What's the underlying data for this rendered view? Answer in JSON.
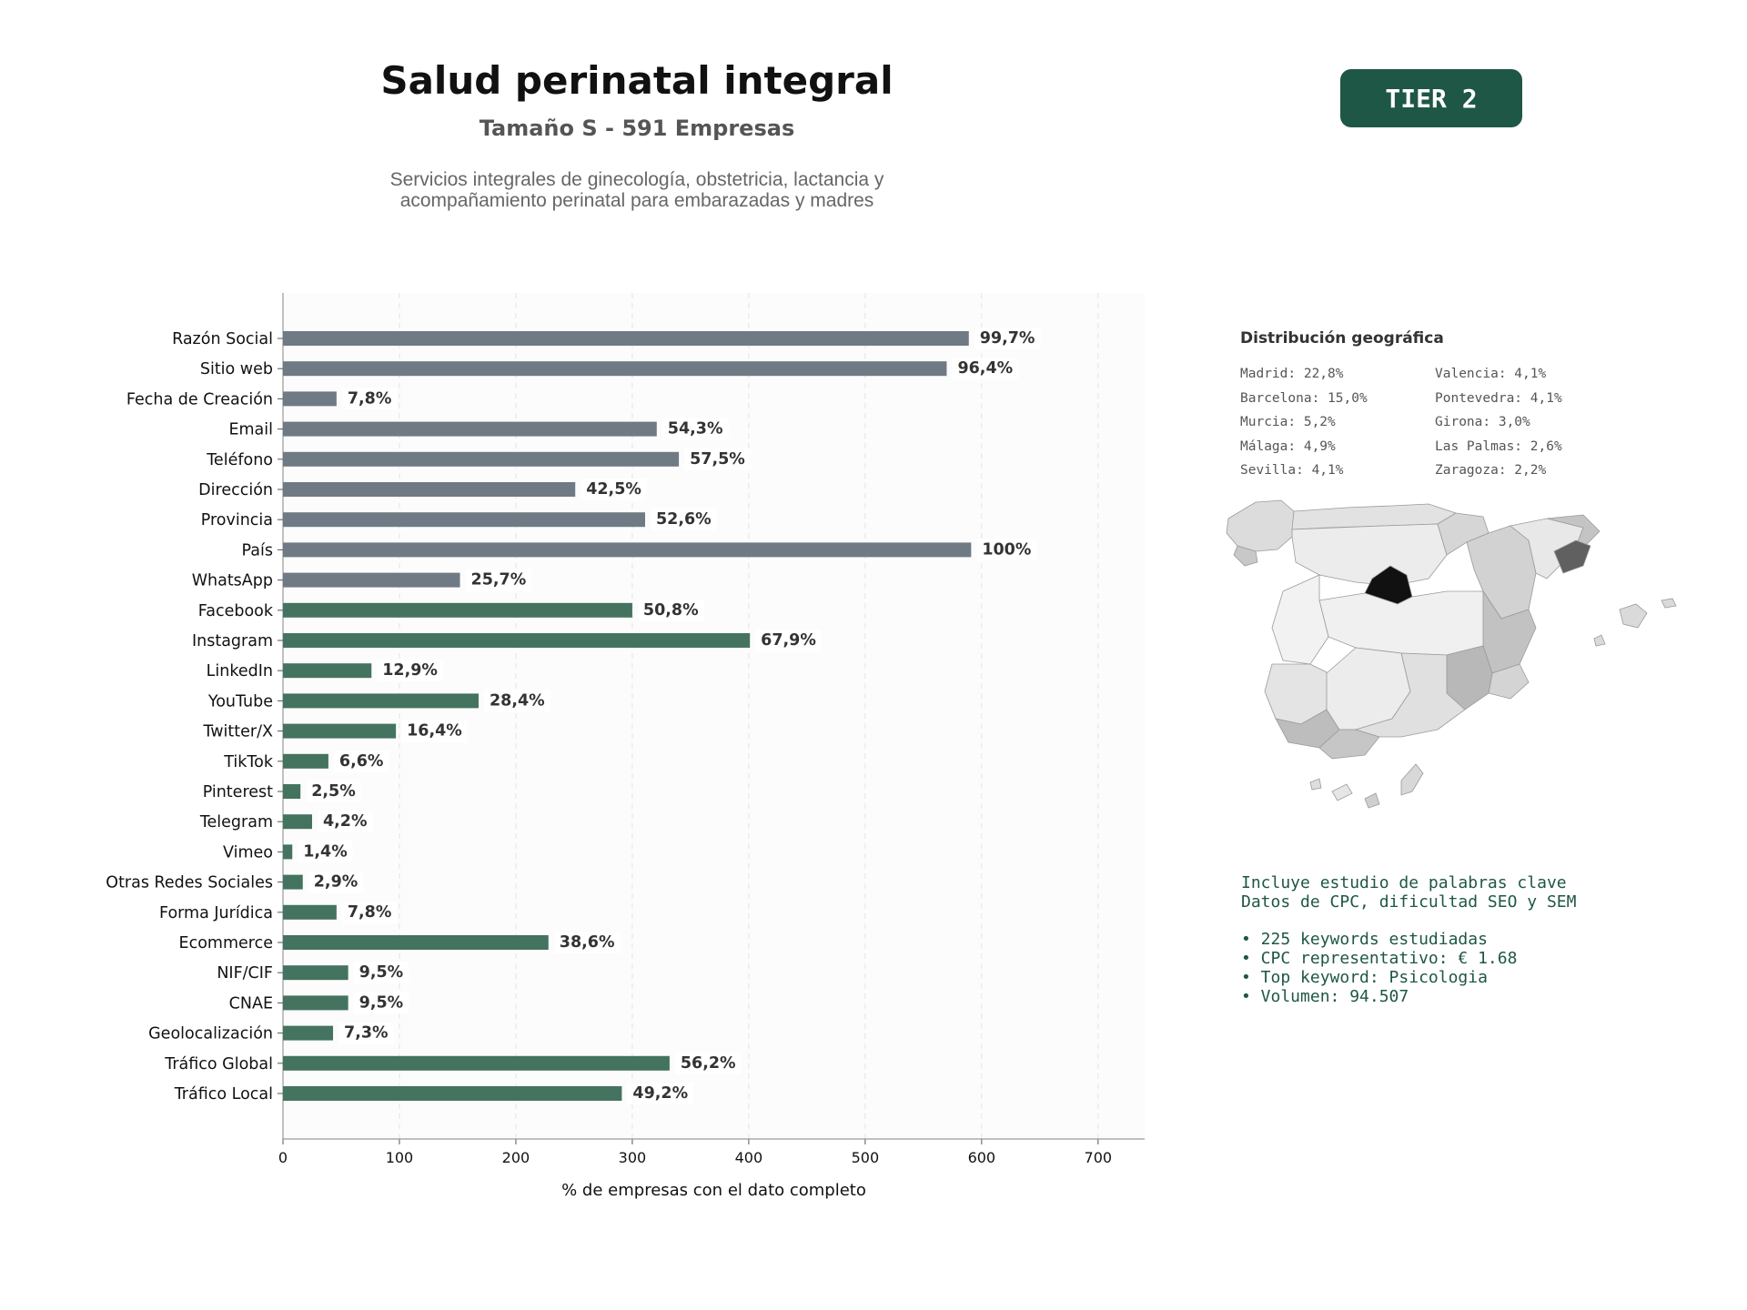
{
  "header": {
    "title": "Salud perinatal integral",
    "subtitle": "Tamaño S - 591 Empresas",
    "description_line1": "Servicios integrales de ginecología, obstetricia, lactancia y",
    "description_line2": "acompañamiento perinatal para embarazadas y madres",
    "tier_badge": "TIER 2"
  },
  "colors": {
    "contact_bar": "#6f7a85",
    "digital_bar": "#44735f",
    "badge_bg": "#1e5745",
    "accent_text": "#1e5745"
  },
  "chart_data": {
    "type": "bar",
    "orientation": "horizontal",
    "title": "",
    "xlabel": "% de empresas con el dato completo",
    "ylabel": "",
    "xlim": [
      0,
      740
    ],
    "xticks": [
      0,
      100,
      200,
      300,
      400,
      500,
      600,
      700
    ],
    "grid": "vertical dashed",
    "categories": [
      "Razón Social",
      "Sitio web",
      "Fecha de Creación",
      "Email",
      "Teléfono",
      "Dirección",
      "Provincia",
      "País",
      "WhatsApp",
      "Facebook",
      "Instagram",
      "LinkedIn",
      "YouTube",
      "Twitter/X",
      "TikTok",
      "Pinterest",
      "Telegram",
      "Vimeo",
      "Otras Redes Sociales",
      "Forma Jurídica",
      "Ecommerce",
      "NIF/CIF",
      "CNAE",
      "Geolocalización",
      "Tráfico Global",
      "Tráfico Local"
    ],
    "values": [
      589,
      570,
      46,
      321,
      340,
      251,
      311,
      591,
      152,
      300,
      401,
      76,
      168,
      97,
      39,
      15,
      25,
      8,
      17,
      46,
      228,
      56,
      56,
      43,
      332,
      291
    ],
    "labels": [
      "99,7%",
      "96,4%",
      "7,8%",
      "54,3%",
      "57,5%",
      "42,5%",
      "52,6%",
      "100%",
      "25,7%",
      "50,8%",
      "67,9%",
      "12,9%",
      "28,4%",
      "16,4%",
      "6,6%",
      "2,5%",
      "4,2%",
      "1,4%",
      "2,9%",
      "7,8%",
      "38,6%",
      "9,5%",
      "9,5%",
      "7,3%",
      "56,2%",
      "49,2%"
    ],
    "bar_groups": [
      "contact",
      "contact",
      "contact",
      "contact",
      "contact",
      "contact",
      "contact",
      "contact",
      "contact",
      "digital",
      "digital",
      "digital",
      "digital",
      "digital",
      "digital",
      "digital",
      "digital",
      "digital",
      "digital",
      "digital",
      "digital",
      "digital",
      "digital",
      "digital",
      "digital",
      "digital"
    ]
  },
  "geo": {
    "title": "Distribución geográfica",
    "items": [
      "Madrid: 22,8%",
      "Valencia: 4,1%",
      "Barcelona: 15,0%",
      "Pontevedra: 4,1%",
      "Murcia: 5,2%",
      "Girona: 3,0%",
      "Málaga: 4,9%",
      "Las Palmas: 2,6%",
      "Sevilla: 4,1%",
      "Zaragoza: 2,2%"
    ]
  },
  "keywords": {
    "line1": "Incluye estudio de palabras clave",
    "line2": "Datos de CPC, dificultad SEO y SEM",
    "bullets": [
      "• 225 keywords estudiadas",
      "• CPC representativo: € 1.68",
      "• Top keyword: Psicologia",
      "• Volumen: 94.507"
    ]
  }
}
